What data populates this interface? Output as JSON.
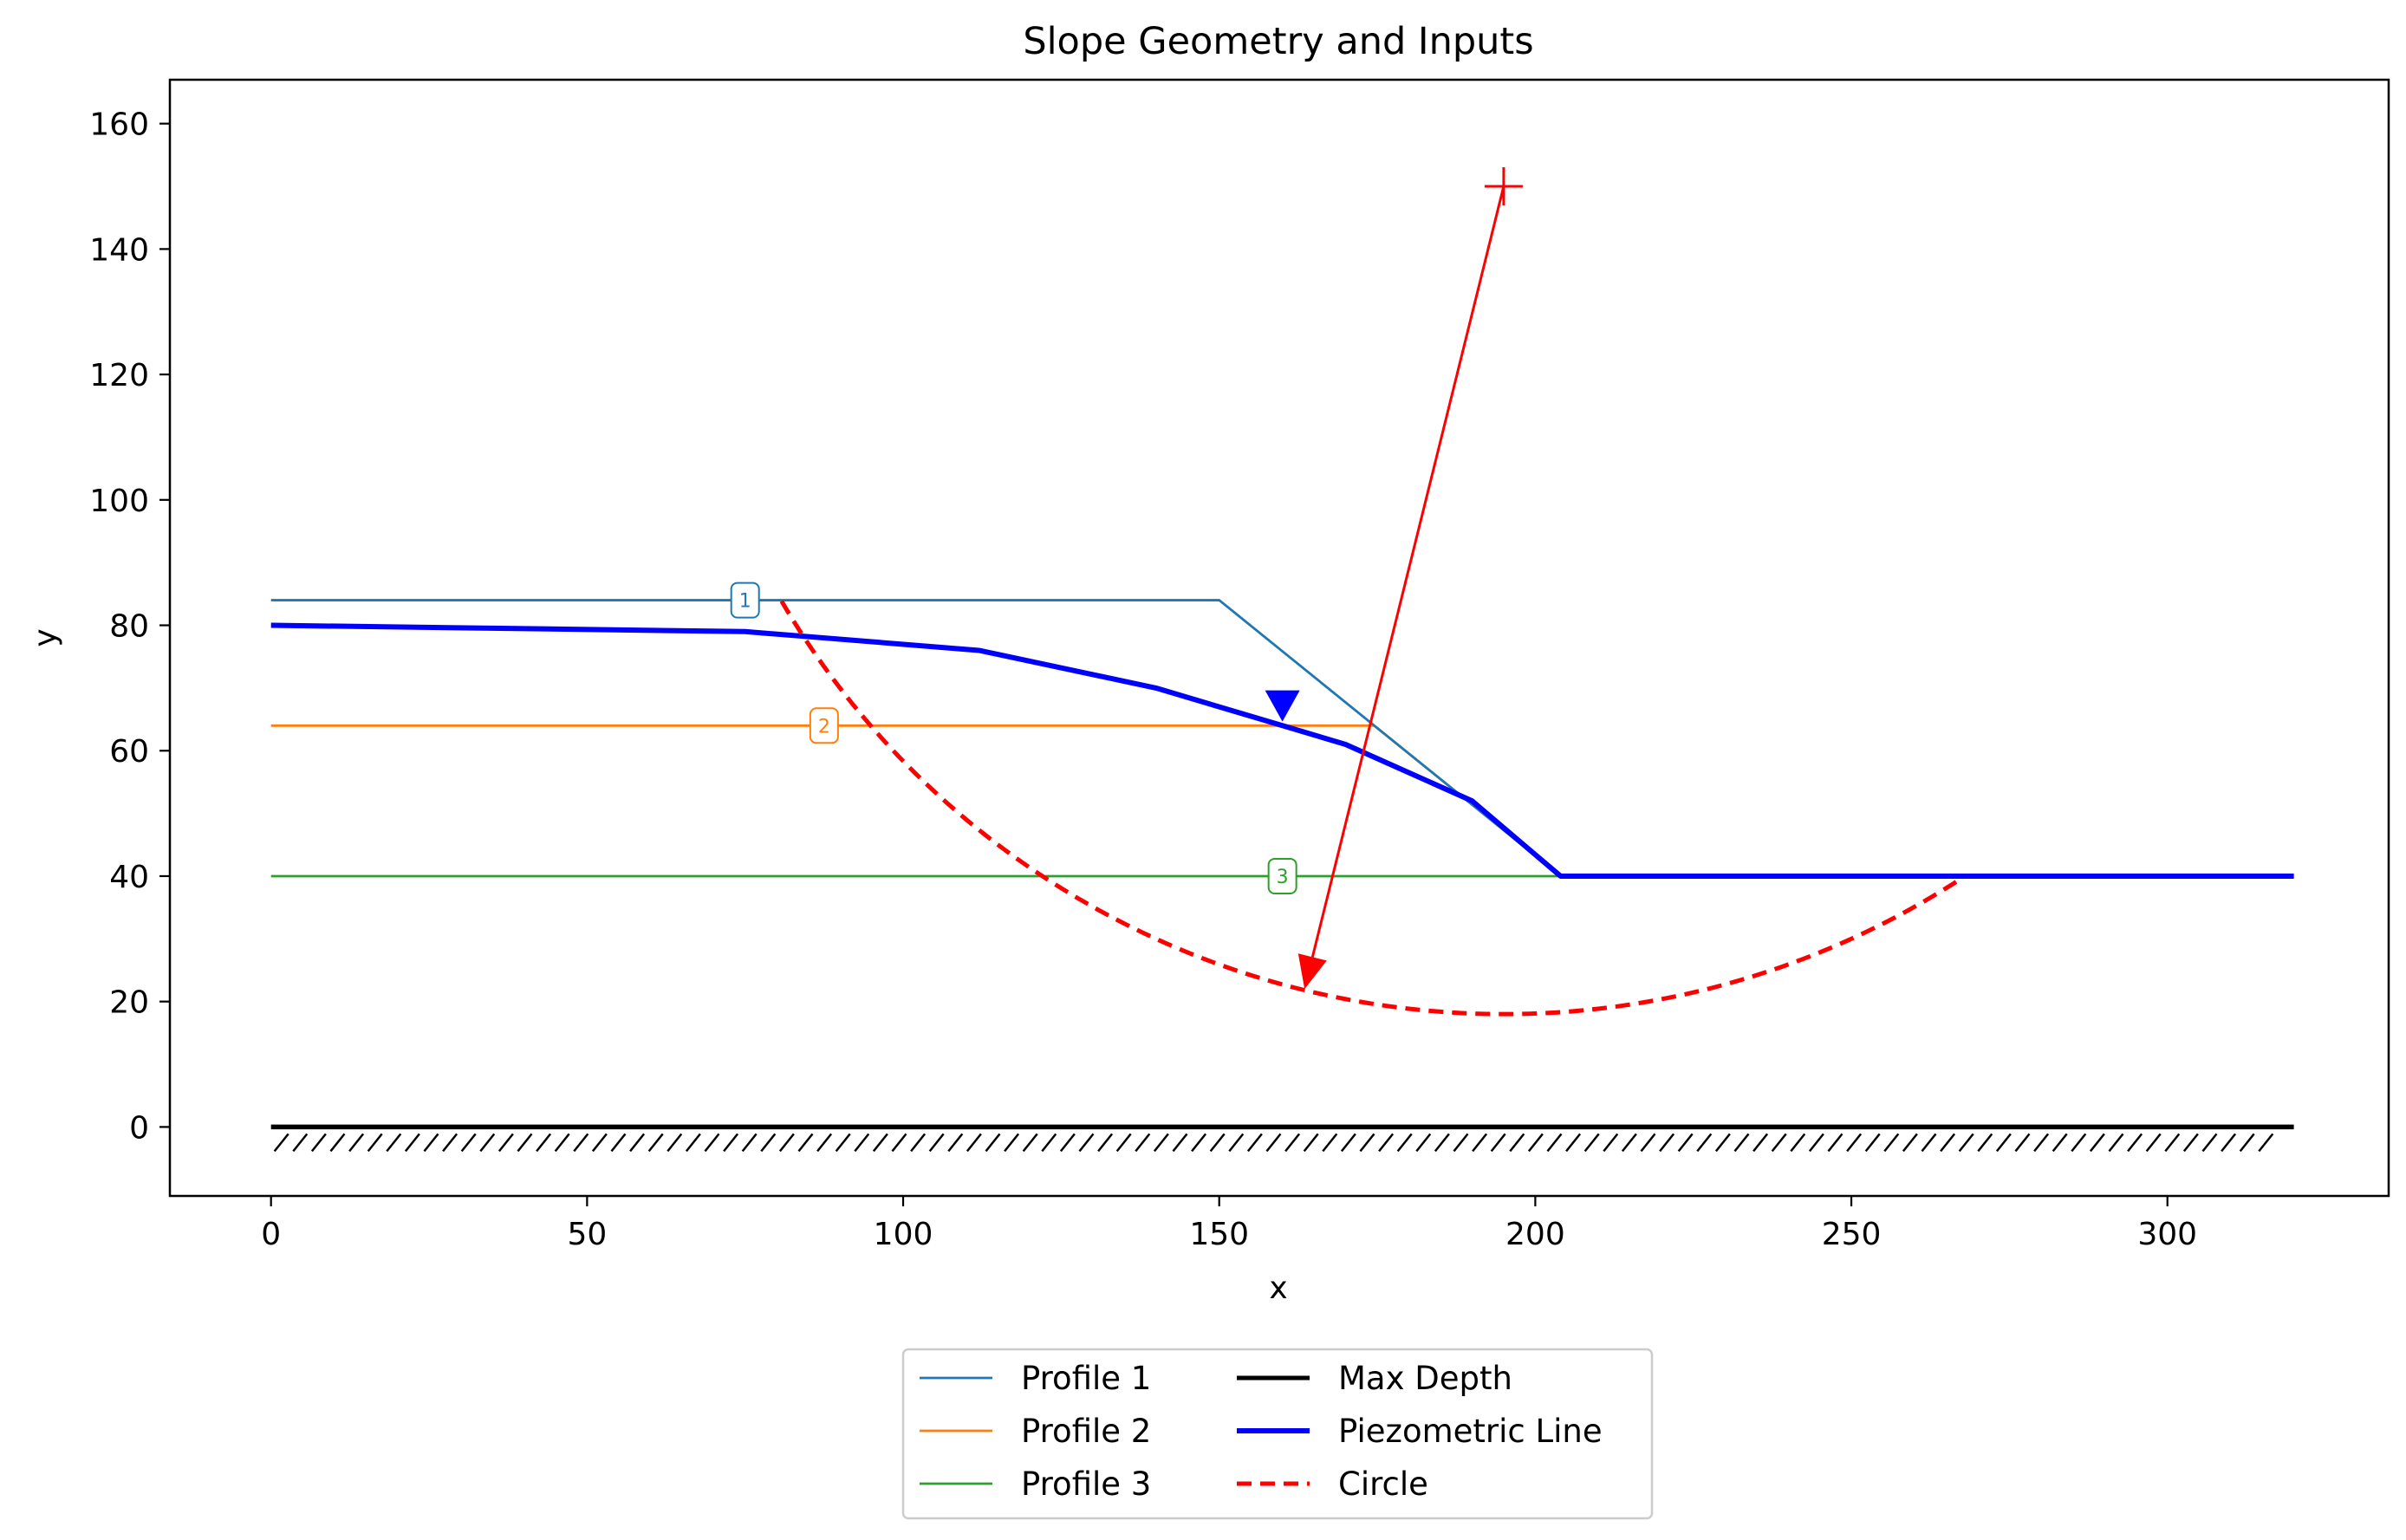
{
  "chart_data": {
    "type": "line",
    "title": "Slope Geometry and Inputs",
    "xlabel": "x",
    "ylabel": "y",
    "xlim": [
      -16,
      335
    ],
    "ylim": [
      -11,
      167
    ],
    "xticks": [
      0,
      50,
      100,
      150,
      200,
      250,
      300
    ],
    "yticks": [
      0,
      20,
      40,
      60,
      80,
      100,
      120,
      140,
      160
    ],
    "grid": false,
    "legend_position": "below",
    "series": [
      {
        "name": "Profile 1",
        "color": "#1f77b4",
        "label": "1",
        "label_at": [
          75,
          84
        ],
        "points": [
          [
            0,
            84
          ],
          [
            150,
            84
          ],
          [
            204,
            40
          ]
        ]
      },
      {
        "name": "Profile 2",
        "color": "#ff7f0e",
        "label": "2",
        "label_at": [
          87.5,
          64
        ],
        "points": [
          [
            0,
            64
          ],
          [
            174.5,
            64
          ],
          [
            204,
            40
          ]
        ]
      },
      {
        "name": "Profile 3",
        "color": "#2ca02c",
        "label": "3",
        "label_at": [
          160,
          40
        ],
        "points": [
          [
            0,
            40
          ],
          [
            204,
            40
          ]
        ]
      },
      {
        "name": "Max Depth",
        "color": "#000000",
        "hatched": true,
        "points": [
          [
            0,
            0
          ],
          [
            320,
            0
          ]
        ]
      },
      {
        "name": "Piezometric Line",
        "color": "#0000ff",
        "water_table_marker": [
          160,
          67
        ],
        "points": [
          [
            0,
            80
          ],
          [
            75,
            79
          ],
          [
            112,
            76
          ],
          [
            140,
            70
          ],
          [
            160,
            64
          ],
          [
            170,
            61
          ],
          [
            190,
            52
          ],
          [
            204,
            40
          ],
          [
            320,
            40
          ]
        ]
      },
      {
        "name": "Circle",
        "color": "#ff0000",
        "dashed": true,
        "center": [
          195,
          150
        ],
        "radius": 132,
        "points": [
          [
            81,
            84
          ],
          [
            90,
            71
          ],
          [
            100,
            60
          ],
          [
            120,
            42
          ],
          [
            140,
            30
          ],
          [
            160,
            22.8
          ],
          [
            180,
            19
          ],
          [
            195,
            18
          ],
          [
            210,
            18.9
          ],
          [
            230,
            23
          ],
          [
            250,
            31
          ],
          [
            267,
            40
          ]
        ]
      }
    ],
    "radius_arrow": {
      "from": [
        195,
        150
      ],
      "to": [
        163.5,
        22
      ],
      "color": "#ff0000"
    }
  }
}
